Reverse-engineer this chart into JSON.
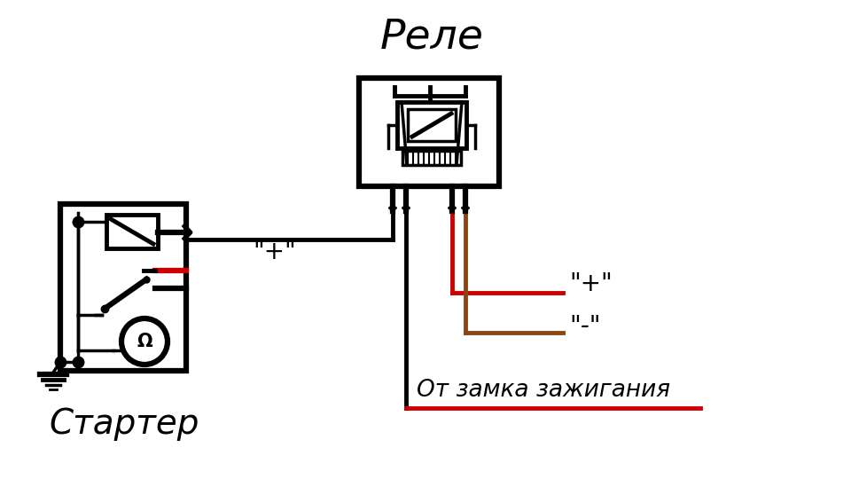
{
  "bg_color": "#ffffff",
  "black": "#000000",
  "red": "#cc0000",
  "brown": "#8B4513",
  "title_relay": "Реле",
  "title_starter": "Стартер",
  "label_plus_s": "\"+\"",
  "label_plus_r": "\"+\"",
  "label_minus_r": "\"-\"",
  "label_from": "От замка зажигания",
  "figsize": [
    9.6,
    5.4
  ],
  "dpi": 100
}
